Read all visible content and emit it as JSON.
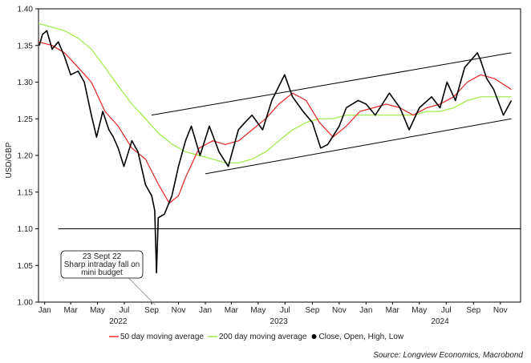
{
  "chart_data": {
    "type": "line",
    "ylabel": "USD/GBP",
    "ylim": [
      1.0,
      1.4
    ],
    "yticks": [
      "1.00",
      "1.05",
      "1.10",
      "1.15",
      "1.20",
      "1.25",
      "1.30",
      "1.35",
      "1.40"
    ],
    "xlim": [
      "2022-01-01",
      "2024-12-31"
    ],
    "month_ticks": [
      {
        "label": "Jan",
        "date": "2022-01-15"
      },
      {
        "label": "Mar",
        "date": "2022-03-15"
      },
      {
        "label": "May",
        "date": "2022-05-15"
      },
      {
        "label": "Jul",
        "date": "2022-07-15"
      },
      {
        "label": "Sep",
        "date": "2022-09-15"
      },
      {
        "label": "Nov",
        "date": "2022-11-15"
      },
      {
        "label": "Jan",
        "date": "2023-01-15"
      },
      {
        "label": "Mar",
        "date": "2023-03-15"
      },
      {
        "label": "May",
        "date": "2023-05-15"
      },
      {
        "label": "Jul",
        "date": "2023-07-15"
      },
      {
        "label": "Sep",
        "date": "2023-09-15"
      },
      {
        "label": "Nov",
        "date": "2023-11-15"
      },
      {
        "label": "Jan",
        "date": "2024-01-15"
      },
      {
        "label": "Mar",
        "date": "2024-03-15"
      },
      {
        "label": "May",
        "date": "2024-05-15"
      },
      {
        "label": "Jul",
        "date": "2024-07-15"
      },
      {
        "label": "Sep",
        "date": "2024-09-15"
      },
      {
        "label": "Nov",
        "date": "2024-11-15"
      }
    ],
    "year_labels": [
      {
        "label": "2022",
        "date": "2022-07-01"
      },
      {
        "label": "2023",
        "date": "2023-07-01"
      },
      {
        "label": "2024",
        "date": "2024-07-01"
      }
    ],
    "series": [
      {
        "name": "Close, Open, High, Low",
        "color": "#000000",
        "points": [
          [
            "2022-01-03",
            1.35
          ],
          [
            "2022-01-10",
            1.365
          ],
          [
            "2022-01-20",
            1.37
          ],
          [
            "2022-02-01",
            1.345
          ],
          [
            "2022-02-15",
            1.355
          ],
          [
            "2022-03-01",
            1.335
          ],
          [
            "2022-03-15",
            1.31
          ],
          [
            "2022-04-01",
            1.315
          ],
          [
            "2022-04-15",
            1.3
          ],
          [
            "2022-05-01",
            1.255
          ],
          [
            "2022-05-13",
            1.225
          ],
          [
            "2022-05-27",
            1.26
          ],
          [
            "2022-06-10",
            1.235
          ],
          [
            "2022-06-20",
            1.225
          ],
          [
            "2022-07-01",
            1.21
          ],
          [
            "2022-07-14",
            1.185
          ],
          [
            "2022-08-01",
            1.22
          ],
          [
            "2022-08-15",
            1.205
          ],
          [
            "2022-09-01",
            1.16
          ],
          [
            "2022-09-15",
            1.145
          ],
          [
            "2022-09-22",
            1.125
          ],
          [
            "2022-09-26",
            1.04
          ],
          [
            "2022-09-30",
            1.115
          ],
          [
            "2022-10-14",
            1.12
          ],
          [
            "2022-10-31",
            1.145
          ],
          [
            "2022-11-15",
            1.185
          ],
          [
            "2022-12-01",
            1.22
          ],
          [
            "2022-12-14",
            1.24
          ],
          [
            "2023-01-03",
            1.2
          ],
          [
            "2023-01-24",
            1.24
          ],
          [
            "2023-02-15",
            1.205
          ],
          [
            "2023-03-08",
            1.185
          ],
          [
            "2023-03-31",
            1.235
          ],
          [
            "2023-04-15",
            1.245
          ],
          [
            "2023-05-01",
            1.255
          ],
          [
            "2023-05-25",
            1.235
          ],
          [
            "2023-06-15",
            1.275
          ],
          [
            "2023-07-14",
            1.31
          ],
          [
            "2023-08-01",
            1.28
          ],
          [
            "2023-08-25",
            1.26
          ],
          [
            "2023-09-15",
            1.245
          ],
          [
            "2023-10-04",
            1.21
          ],
          [
            "2023-10-20",
            1.215
          ],
          [
            "2023-11-15",
            1.24
          ],
          [
            "2023-12-01",
            1.265
          ],
          [
            "2023-12-28",
            1.275
          ],
          [
            "2024-01-15",
            1.27
          ],
          [
            "2024-02-05",
            1.255
          ],
          [
            "2024-03-08",
            1.285
          ],
          [
            "2024-04-01",
            1.265
          ],
          [
            "2024-04-22",
            1.235
          ],
          [
            "2024-05-15",
            1.265
          ],
          [
            "2024-06-12",
            1.28
          ],
          [
            "2024-07-01",
            1.265
          ],
          [
            "2024-07-17",
            1.3
          ],
          [
            "2024-08-05",
            1.275
          ],
          [
            "2024-08-26",
            1.32
          ],
          [
            "2024-09-24",
            1.34
          ],
          [
            "2024-10-01",
            1.33
          ],
          [
            "2024-10-15",
            1.305
          ],
          [
            "2024-10-31",
            1.29
          ],
          [
            "2024-11-22",
            1.255
          ],
          [
            "2024-12-10",
            1.275
          ]
        ]
      },
      {
        "name": "50 day moving average",
        "color": "#e32222",
        "points": [
          [
            "2022-01-01",
            1.355
          ],
          [
            "2022-02-01",
            1.35
          ],
          [
            "2022-03-01",
            1.34
          ],
          [
            "2022-04-01",
            1.32
          ],
          [
            "2022-05-01",
            1.3
          ],
          [
            "2022-06-01",
            1.26
          ],
          [
            "2022-07-01",
            1.24
          ],
          [
            "2022-08-01",
            1.21
          ],
          [
            "2022-09-01",
            1.195
          ],
          [
            "2022-10-01",
            1.16
          ],
          [
            "2022-10-25",
            1.135
          ],
          [
            "2022-11-15",
            1.145
          ],
          [
            "2022-12-01",
            1.17
          ],
          [
            "2023-01-01",
            1.21
          ],
          [
            "2023-02-01",
            1.22
          ],
          [
            "2023-03-01",
            1.215
          ],
          [
            "2023-04-01",
            1.22
          ],
          [
            "2023-05-01",
            1.235
          ],
          [
            "2023-06-01",
            1.25
          ],
          [
            "2023-07-01",
            1.27
          ],
          [
            "2023-08-01",
            1.285
          ],
          [
            "2023-09-01",
            1.275
          ],
          [
            "2023-10-01",
            1.245
          ],
          [
            "2023-11-01",
            1.225
          ],
          [
            "2023-12-01",
            1.24
          ],
          [
            "2024-01-01",
            1.26
          ],
          [
            "2024-02-01",
            1.265
          ],
          [
            "2024-03-01",
            1.27
          ],
          [
            "2024-04-01",
            1.265
          ],
          [
            "2024-05-01",
            1.255
          ],
          [
            "2024-06-01",
            1.265
          ],
          [
            "2024-07-01",
            1.27
          ],
          [
            "2024-08-01",
            1.28
          ],
          [
            "2024-09-01",
            1.3
          ],
          [
            "2024-10-01",
            1.31
          ],
          [
            "2024-11-01",
            1.305
          ],
          [
            "2024-12-10",
            1.29
          ]
        ]
      },
      {
        "name": "200 day moving average",
        "color": "#9bea44",
        "points": [
          [
            "2022-01-01",
            1.38
          ],
          [
            "2022-02-01",
            1.375
          ],
          [
            "2022-03-01",
            1.37
          ],
          [
            "2022-04-01",
            1.36
          ],
          [
            "2022-05-01",
            1.345
          ],
          [
            "2022-06-01",
            1.32
          ],
          [
            "2022-07-01",
            1.295
          ],
          [
            "2022-08-01",
            1.27
          ],
          [
            "2022-09-01",
            1.25
          ],
          [
            "2022-10-01",
            1.23
          ],
          [
            "2022-11-01",
            1.215
          ],
          [
            "2022-12-01",
            1.205
          ],
          [
            "2023-01-01",
            1.2
          ],
          [
            "2023-02-01",
            1.195
          ],
          [
            "2023-03-01",
            1.19
          ],
          [
            "2023-04-01",
            1.19
          ],
          [
            "2023-05-01",
            1.195
          ],
          [
            "2023-06-01",
            1.205
          ],
          [
            "2023-07-01",
            1.22
          ],
          [
            "2023-08-01",
            1.235
          ],
          [
            "2023-09-01",
            1.245
          ],
          [
            "2023-10-01",
            1.25
          ],
          [
            "2023-11-01",
            1.25
          ],
          [
            "2023-12-01",
            1.255
          ],
          [
            "2024-01-01",
            1.255
          ],
          [
            "2024-02-01",
            1.255
          ],
          [
            "2024-03-01",
            1.255
          ],
          [
            "2024-04-01",
            1.255
          ],
          [
            "2024-05-01",
            1.255
          ],
          [
            "2024-06-01",
            1.26
          ],
          [
            "2024-07-01",
            1.26
          ],
          [
            "2024-08-01",
            1.265
          ],
          [
            "2024-09-01",
            1.275
          ],
          [
            "2024-10-01",
            1.28
          ],
          [
            "2024-11-01",
            1.28
          ],
          [
            "2024-12-10",
            1.28
          ]
        ]
      }
    ],
    "reference_lines": [
      {
        "name": "Upper channel",
        "color": "#000000",
        "from": [
          "2022-09-15",
          1.255
        ],
        "to": [
          "2024-12-10",
          1.34
        ]
      },
      {
        "name": "Lower channel",
        "color": "#000000",
        "from": [
          "2023-01-15",
          1.175
        ],
        "to": [
          "2024-12-10",
          1.25
        ]
      },
      {
        "name": "1.10 level",
        "color": "#000000",
        "from": [
          "2022-02-15",
          1.1
        ],
        "to": [
          "2024-12-31",
          1.1
        ]
      }
    ],
    "annotation": {
      "lines": [
        "23 Sept 22",
        "Sharp intraday fall on",
        "mini budget"
      ],
      "date": "2022-09-23",
      "value": 1.04
    },
    "legend": [
      {
        "label": "50 day moving average",
        "color": "#e32222",
        "marker": "line"
      },
      {
        "label": "200 day moving average",
        "color": "#9bea44",
        "marker": "line"
      },
      {
        "label": "Close, Open, High, Low",
        "color": "#000000",
        "marker": "dot"
      }
    ],
    "source": "Source: Longview Economics, Macrobond"
  }
}
